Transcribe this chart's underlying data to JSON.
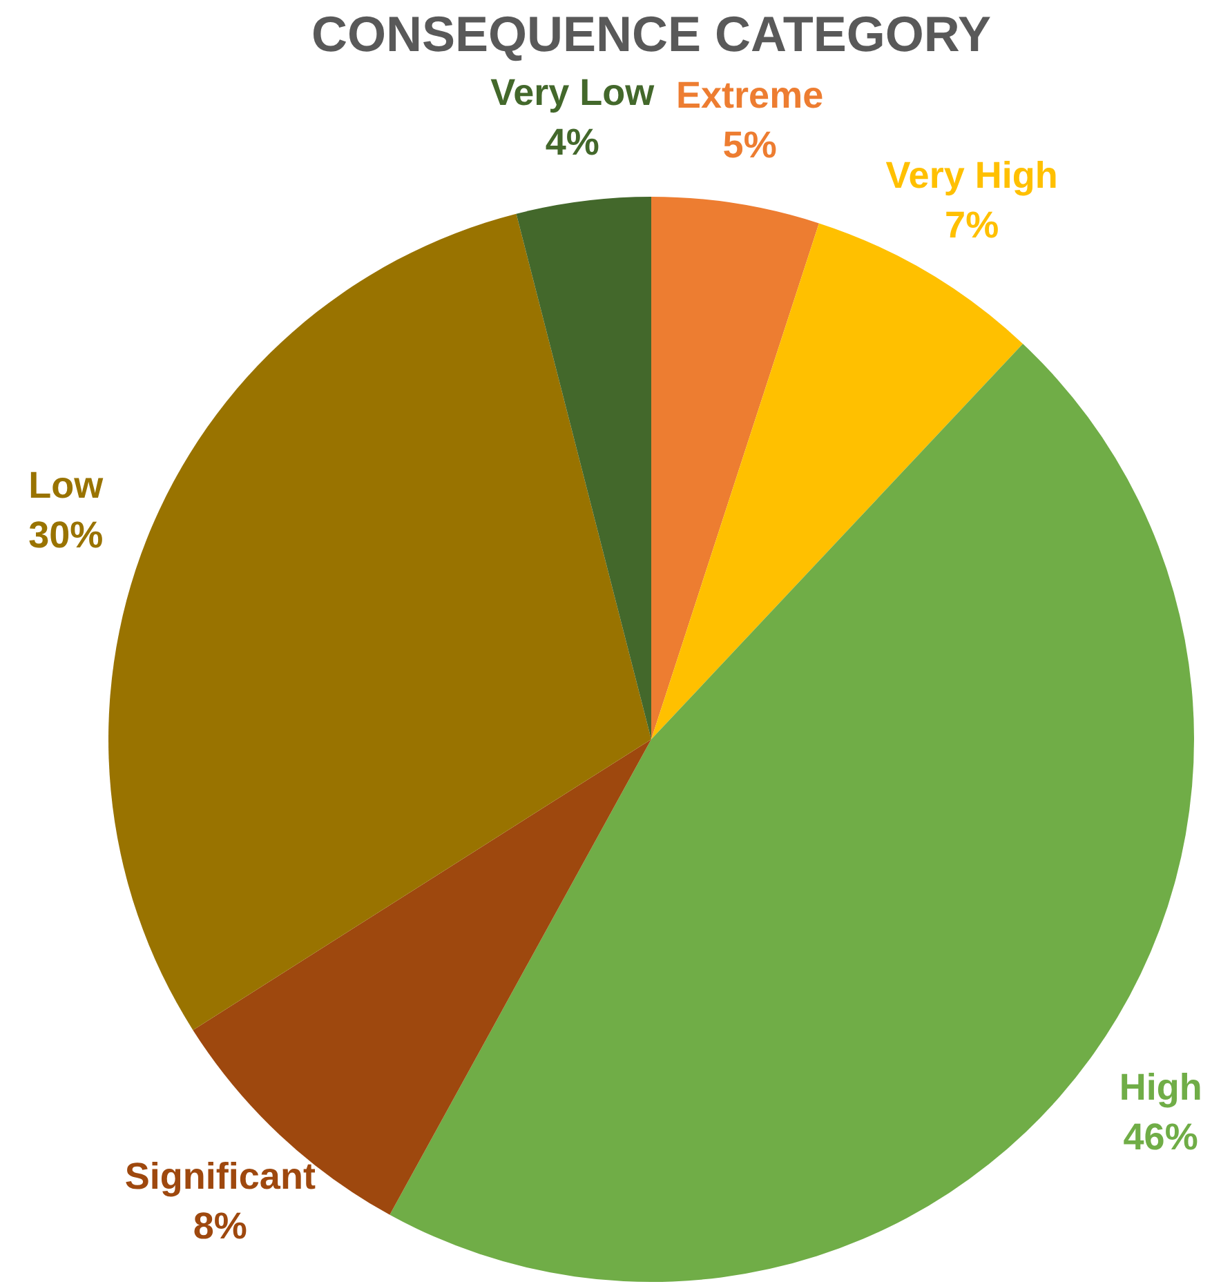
{
  "chart_data": {
    "type": "pie",
    "title": "CONSEQUENCE CATEGORY",
    "categories": [
      "Extreme",
      "Very High",
      "High",
      "Significant",
      "Low",
      "Very Low"
    ],
    "values": [
      5,
      7,
      46,
      8,
      30,
      4
    ],
    "value_labels": [
      "5%",
      "7%",
      "46%",
      "8%",
      "30%",
      "4%"
    ],
    "colors": [
      "#ed7d31",
      "#ffc000",
      "#70ad47",
      "#9e480e",
      "#997300",
      "#43682b"
    ]
  }
}
